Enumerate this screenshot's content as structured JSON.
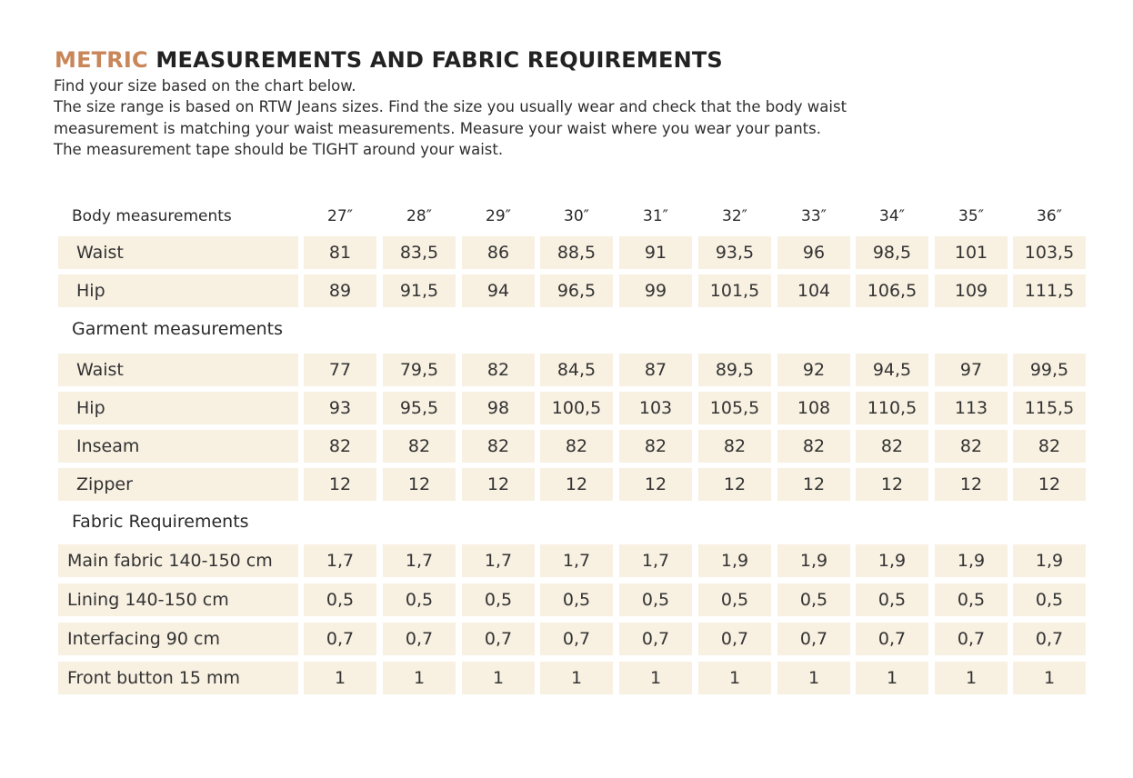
{
  "title": {
    "accent": "METRIC",
    "rest": " MEASUREMENTS AND FABRIC REQUIREMENTS"
  },
  "intro_lines": [
    "Find your size based on the chart below.",
    "The size range is based on RTW Jeans sizes. Find the size you usually wear and check that the body waist",
    "measurement is matching your waist measurements. Measure your waist where you wear your pants.",
    "The measurement tape should be TIGHT around your waist."
  ],
  "table": {
    "header_label": "Body measurements",
    "sizes": [
      "27″",
      "28″",
      "29″",
      "30″",
      "31″",
      "32″",
      "33″",
      "34″",
      "35″",
      "36″"
    ],
    "sections": [
      {
        "title": "",
        "rows": [
          {
            "label": "Waist",
            "values": [
              "81",
              "83,5",
              "86",
              "88,5",
              "91",
              "93,5",
              "96",
              "98,5",
              "101",
              "103,5"
            ]
          },
          {
            "label": "Hip",
            "values": [
              "89",
              "91,5",
              "94",
              "96,5",
              "99",
              "101,5",
              "104",
              "106,5",
              "109",
              "111,5"
            ]
          }
        ]
      },
      {
        "title": "Garment measurements",
        "rows": [
          {
            "label": "Waist",
            "values": [
              "77",
              "79,5",
              "82",
              "84,5",
              "87",
              "89,5",
              "92",
              "94,5",
              "97",
              "99,5"
            ]
          },
          {
            "label": "Hip",
            "values": [
              "93",
              "95,5",
              "98",
              "100,5",
              "103",
              "105,5",
              "108",
              "110,5",
              "113",
              "115,5"
            ]
          },
          {
            "label": "Inseam",
            "values": [
              "82",
              "82",
              "82",
              "82",
              "82",
              "82",
              "82",
              "82",
              "82",
              "82"
            ]
          },
          {
            "label": "Zipper",
            "values": [
              "12",
              "12",
              "12",
              "12",
              "12",
              "12",
              "12",
              "12",
              "12",
              "12"
            ]
          }
        ]
      },
      {
        "title": "Fabric Requirements",
        "rows": [
          {
            "label": "Main fabric 140-150 cm",
            "values": [
              "1,7",
              "1,7",
              "1,7",
              "1,7",
              "1,7",
              "1,9",
              "1,9",
              "1,9",
              "1,9",
              "1,9"
            ]
          },
          {
            "label": "Lining 140-150 cm",
            "values": [
              "0,5",
              "0,5",
              "0,5",
              "0,5",
              "0,5",
              "0,5",
              "0,5",
              "0,5",
              "0,5",
              "0,5"
            ]
          },
          {
            "label": "Interfacing 90 cm",
            "values": [
              "0,7",
              "0,7",
              "0,7",
              "0,7",
              "0,7",
              "0,7",
              "0,7",
              "0,7",
              "0,7",
              "0,7"
            ]
          },
          {
            "label": "Front button 15 mm",
            "values": [
              "1",
              "1",
              "1",
              "1",
              "1",
              "1",
              "1",
              "1",
              "1",
              "1"
            ]
          }
        ]
      }
    ]
  }
}
